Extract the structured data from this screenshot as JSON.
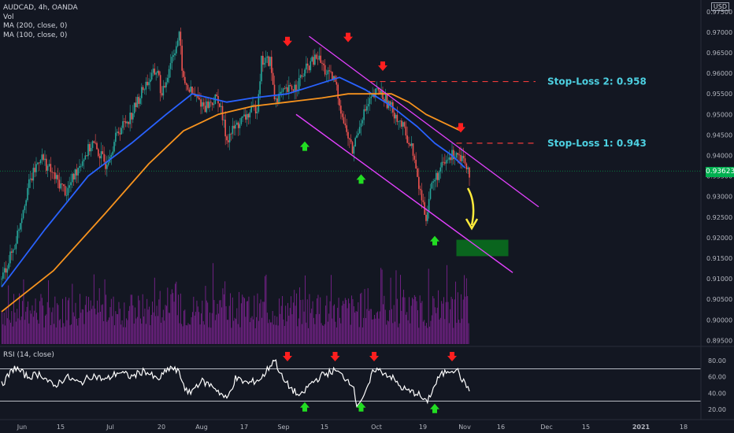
{
  "header": {
    "symbol": "AUDCAD, 4h, OANDA",
    "vol_label": "Vol",
    "ma200_label": "MA (200, close, 0)",
    "ma100_label": "MA (100, close, 0)",
    "rsi_label": "RSI (14, close)",
    "currency": "USD",
    "current_price": "0.93623"
  },
  "colors": {
    "background": "#131722",
    "candle_up": "#26a69a",
    "candle_down": "#ef5350",
    "ma100": "#2962ff",
    "ma200": "#f7931e",
    "channel": "#e040fb",
    "volume": "#9c27b0",
    "stop_loss": "#ef3a3a",
    "annotation_text": "#4dd0e1",
    "target_zone": "#0a6e1e",
    "forecast_arrow": "#ffeb3b",
    "rsi_line": "#ffffff"
  },
  "chart_data": [
    {
      "type": "candlestick",
      "name": "price",
      "x_labels": [
        "Jun",
        "15",
        "Jul",
        "20",
        "Aug",
        "17",
        "Sep",
        "15",
        "Oct",
        "19",
        "Nov",
        "16",
        "Dec",
        "15",
        "2021",
        "18"
      ],
      "y_ticks": [
        "0.97500",
        "0.97000",
        "0.96500",
        "0.96000",
        "0.95500",
        "0.95000",
        "0.94500",
        "0.94000",
        "0.93500",
        "0.93000",
        "0.92500",
        "0.92000",
        "0.91500",
        "0.91000",
        "0.90500",
        "0.90000",
        "0.89500"
      ],
      "ylim": [
        0.8945,
        0.9765
      ],
      "close_path": [
        [
          0,
          0.91
        ],
        [
          3,
          0.918
        ],
        [
          6,
          0.932
        ],
        [
          9,
          0.94
        ],
        [
          12,
          0.935
        ],
        [
          15,
          0.931
        ],
        [
          18,
          0.938
        ],
        [
          21,
          0.943
        ],
        [
          24,
          0.938
        ],
        [
          27,
          0.946
        ],
        [
          30,
          0.95
        ],
        [
          33,
          0.957
        ],
        [
          36,
          0.961
        ],
        [
          37,
          0.954
        ],
        [
          39,
          0.963
        ],
        [
          41,
          0.969
        ],
        [
          42,
          0.958
        ],
        [
          44,
          0.955
        ],
        [
          47,
          0.952
        ],
        [
          50,
          0.954
        ],
        [
          52,
          0.944
        ],
        [
          54,
          0.947
        ],
        [
          57,
          0.95
        ],
        [
          59,
          0.952
        ],
        [
          60,
          0.963
        ],
        [
          62,
          0.963
        ],
        [
          63,
          0.954
        ],
        [
          65,
          0.955
        ],
        [
          68,
          0.957
        ],
        [
          71,
          0.962
        ],
        [
          73,
          0.964
        ],
        [
          75,
          0.96
        ],
        [
          77,
          0.958
        ],
        [
          79,
          0.948
        ],
        [
          81,
          0.941
        ],
        [
          83,
          0.949
        ],
        [
          85,
          0.953
        ],
        [
          87,
          0.956
        ],
        [
          89,
          0.953
        ],
        [
          91,
          0.95
        ],
        [
          93,
          0.946
        ],
        [
          95,
          0.941
        ],
        [
          96,
          0.934
        ],
        [
          98,
          0.925
        ],
        [
          99,
          0.932
        ],
        [
          101,
          0.936
        ],
        [
          103,
          0.939
        ],
        [
          105,
          0.941
        ],
        [
          107,
          0.939
        ],
        [
          108,
          0.936
        ]
      ],
      "ma100": [
        [
          0,
          0.908
        ],
        [
          10,
          0.922
        ],
        [
          20,
          0.935
        ],
        [
          30,
          0.943
        ],
        [
          38,
          0.95
        ],
        [
          44,
          0.955
        ],
        [
          52,
          0.953
        ],
        [
          58,
          0.954
        ],
        [
          66,
          0.955
        ],
        [
          72,
          0.957
        ],
        [
          78,
          0.959
        ],
        [
          84,
          0.956
        ],
        [
          90,
          0.952
        ],
        [
          96,
          0.947
        ],
        [
          100,
          0.943
        ],
        [
          104,
          0.94
        ],
        [
          107,
          0.937
        ]
      ],
      "ma200": [
        [
          0,
          0.902
        ],
        [
          12,
          0.912
        ],
        [
          24,
          0.926
        ],
        [
          34,
          0.938
        ],
        [
          42,
          0.946
        ],
        [
          50,
          0.95
        ],
        [
          58,
          0.952
        ],
        [
          66,
          0.953
        ],
        [
          74,
          0.954
        ],
        [
          80,
          0.955
        ],
        [
          86,
          0.955
        ],
        [
          90,
          0.955
        ],
        [
          94,
          0.953
        ],
        [
          98,
          0.95
        ],
        [
          102,
          0.948
        ],
        [
          106,
          0.946
        ]
      ],
      "channel_upper": [
        [
          71,
          0.969
        ],
        [
          124,
          0.9275
        ]
      ],
      "channel_lower": [
        [
          68,
          0.95
        ],
        [
          118,
          0.9115
        ]
      ],
      "stop_loss_levels": [
        {
          "label": "Stop-Loss 2: 0.958",
          "price": 0.958,
          "x_start": 85
        },
        {
          "label": "Stop-Loss 1: 0.943",
          "price": 0.943,
          "x_start": 105
        }
      ],
      "target_zone": {
        "x": [
          105,
          117
        ],
        "price_range": [
          0.9155,
          0.9195
        ]
      },
      "down_markers": [
        [
          66,
          0.966
        ],
        [
          80,
          0.967
        ],
        [
          88,
          0.96
        ],
        [
          106,
          0.945
        ]
      ],
      "up_markers": [
        [
          70,
          0.944
        ],
        [
          83,
          0.936
        ],
        [
          100,
          0.921
        ]
      ]
    },
    {
      "type": "line",
      "name": "RSI",
      "y_ticks": [
        "80.00",
        "60.00",
        "40.00",
        "20.00"
      ],
      "ylim": [
        15,
        85
      ],
      "bands": [
        70,
        30
      ],
      "values_path": [
        [
          0,
          50
        ],
        [
          3,
          72
        ],
        [
          6,
          60
        ],
        [
          9,
          64
        ],
        [
          12,
          48
        ],
        [
          15,
          60
        ],
        [
          18,
          52
        ],
        [
          21,
          62
        ],
        [
          24,
          56
        ],
        [
          27,
          66
        ],
        [
          30,
          60
        ],
        [
          33,
          68
        ],
        [
          36,
          56
        ],
        [
          39,
          72
        ],
        [
          41,
          65
        ],
        [
          43,
          38
        ],
        [
          46,
          55
        ],
        [
          49,
          48
        ],
        [
          52,
          32
        ],
        [
          54,
          58
        ],
        [
          57,
          52
        ],
        [
          60,
          58
        ],
        [
          63,
          82
        ],
        [
          65,
          56
        ],
        [
          67,
          45
        ],
        [
          69,
          35
        ],
        [
          71,
          50
        ],
        [
          74,
          62
        ],
        [
          77,
          68
        ],
        [
          79,
          60
        ],
        [
          81,
          52
        ],
        [
          82,
          26
        ],
        [
          84,
          38
        ],
        [
          86,
          70
        ],
        [
          88,
          66
        ],
        [
          90,
          60
        ],
        [
          92,
          48
        ],
        [
          94,
          42
        ],
        [
          96,
          40
        ],
        [
          98,
          28
        ],
        [
          99,
          38
        ],
        [
          101,
          60
        ],
        [
          103,
          68
        ],
        [
          105,
          70
        ],
        [
          107,
          50
        ],
        [
          108,
          46
        ]
      ],
      "down_markers": [
        [
          66,
          84
        ],
        [
          77,
          84
        ],
        [
          86,
          84
        ],
        [
          104,
          84
        ]
      ],
      "up_markers": [
        [
          70,
          24
        ],
        [
          83,
          24
        ],
        [
          100,
          22
        ]
      ]
    }
  ]
}
